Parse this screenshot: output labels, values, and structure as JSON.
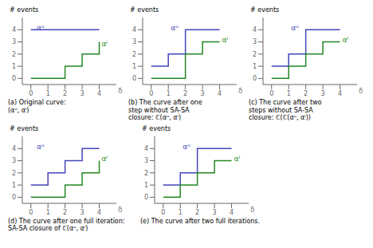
{
  "chart_data": [
    {
      "type": "line",
      "line_style": "step",
      "title": "(a) Original curve:\n(αᵘ, αˡ)",
      "x_label": "δ",
      "y_label": "# events",
      "xlim": [
        -0.5,
        5.0
      ],
      "ylim": [
        -0.5,
        5.0
      ],
      "xticks": [
        0,
        1,
        2,
        3,
        4
      ],
      "yticks": [
        0,
        1,
        2,
        3,
        4
      ],
      "grid": false,
      "legend": false,
      "series": [
        {
          "color": "#4444bb",
          "x": [
            0,
            4
          ],
          "values": [
            4,
            4
          ]
        },
        {
          "color": "#228822",
          "x": [
            0,
            2,
            2,
            3,
            3,
            4,
            4
          ],
          "values": [
            0,
            0,
            1,
            1,
            2,
            2,
            3
          ]
        }
      ],
      "annotations": [
        {
          "text": "αᵘ",
          "x": 0.25,
          "y": 4.15,
          "color": "#4444bb"
        },
        {
          "text": "αˡ",
          "x": 4.05,
          "y": 2.85,
          "color": "#228822"
        }
      ]
    },
    {
      "type": "line",
      "line_style": "step",
      "title": "(b) The curve after one\nstep without SA-SA\nclosure: ℂ(αᵘ, αˡ)",
      "x_label": "δ",
      "y_label": "# events",
      "xlim": [
        -0.5,
        5.0
      ],
      "ylim": [
        -0.5,
        5.0
      ],
      "xticks": [
        0,
        1,
        2,
        3,
        4
      ],
      "yticks": [
        0,
        1,
        2,
        3,
        4
      ],
      "grid": false,
      "legend": false,
      "series": [
        {
          "color": "#4444bb",
          "x": [
            0,
            1,
            1,
            2,
            2,
            4
          ],
          "values": [
            1,
            1,
            2,
            2,
            4,
            4
          ]
        },
        {
          "color": "#228822",
          "x": [
            0,
            2,
            2,
            3,
            3,
            4
          ],
          "values": [
            0,
            0,
            2,
            2,
            3,
            3
          ]
        }
      ],
      "annotations": [
        {
          "text": "αᵘ",
          "x": 1.05,
          "y": 4.15,
          "color": "#4444bb"
        },
        {
          "text": "αˡ",
          "x": 4.05,
          "y": 3.15,
          "color": "#228822"
        }
      ]
    },
    {
      "type": "line",
      "line_style": "step",
      "title": "(c) The curve after two\nsteps without SA-SA\nclosure: ℂ(ℂ(αᵘ, αˡ))",
      "x_label": "δ",
      "y_label": "# events",
      "xlim": [
        -0.5,
        5.0
      ],
      "ylim": [
        -0.5,
        5.0
      ],
      "xticks": [
        0,
        1,
        2,
        3,
        4
      ],
      "yticks": [
        0,
        1,
        2,
        3,
        4
      ],
      "grid": false,
      "legend": false,
      "series": [
        {
          "color": "#4444bb",
          "x": [
            0,
            1,
            1,
            2,
            2,
            4
          ],
          "values": [
            1,
            1,
            2,
            2,
            4,
            4
          ]
        },
        {
          "color": "#228822",
          "x": [
            0,
            1,
            1,
            2,
            2,
            3,
            3,
            4
          ],
          "values": [
            0,
            0,
            1,
            1,
            2,
            2,
            3,
            3
          ]
        }
      ],
      "annotations": [
        {
          "text": "αᵘ",
          "x": 1.05,
          "y": 4.15,
          "color": "#4444bb"
        },
        {
          "text": "αˡ",
          "x": 4.05,
          "y": 3.15,
          "color": "#228822"
        }
      ]
    },
    {
      "type": "line",
      "line_style": "step",
      "title": "(d) The curve after one full iteration:\nSA-SA closure of ℂ(αᵘ, αˡ)",
      "x_label": "δ",
      "y_label": "# events",
      "xlim": [
        -0.5,
        5.0
      ],
      "ylim": [
        -0.5,
        5.0
      ],
      "xticks": [
        0,
        1,
        2,
        3,
        4
      ],
      "yticks": [
        0,
        1,
        2,
        3,
        4
      ],
      "grid": false,
      "legend": false,
      "series": [
        {
          "color": "#4444bb",
          "x": [
            0,
            1,
            1,
            2,
            2,
            3,
            3,
            4
          ],
          "values": [
            1,
            1,
            2,
            2,
            3,
            3,
            4,
            4
          ]
        },
        {
          "color": "#228822",
          "x": [
            0,
            2,
            2,
            3,
            3,
            4,
            4
          ],
          "values": [
            0,
            0,
            1,
            1,
            2,
            2,
            3
          ]
        }
      ],
      "annotations": [
        {
          "text": "αᵘ",
          "x": 0.25,
          "y": 4.15,
          "color": "#4444bb"
        },
        {
          "text": "αˡ",
          "x": 4.05,
          "y": 3.15,
          "color": "#228822"
        }
      ]
    },
    {
      "type": "line",
      "line_style": "step",
      "title": "(e) The curve after two full iterations.",
      "x_label": "δ",
      "y_label": "# events",
      "xlim": [
        -0.5,
        5.0
      ],
      "ylim": [
        -0.5,
        5.0
      ],
      "xticks": [
        0,
        1,
        2,
        3,
        4
      ],
      "yticks": [
        0,
        1,
        2,
        3,
        4
      ],
      "grid": false,
      "legend": false,
      "series": [
        {
          "color": "#4444bb",
          "x": [
            0,
            1,
            1,
            2,
            2,
            4
          ],
          "values": [
            1,
            1,
            2,
            2,
            4,
            4
          ]
        },
        {
          "color": "#228822",
          "x": [
            0,
            1,
            1,
            2,
            2,
            3,
            3,
            4
          ],
          "values": [
            0,
            0,
            1,
            1,
            2,
            2,
            3,
            3
          ]
        }
      ],
      "annotations": [
        {
          "text": "αᵘ",
          "x": 1.05,
          "y": 4.15,
          "color": "#4444bb"
        },
        {
          "text": "αˡ",
          "x": 4.05,
          "y": 3.15,
          "color": "#228822"
        }
      ]
    }
  ]
}
